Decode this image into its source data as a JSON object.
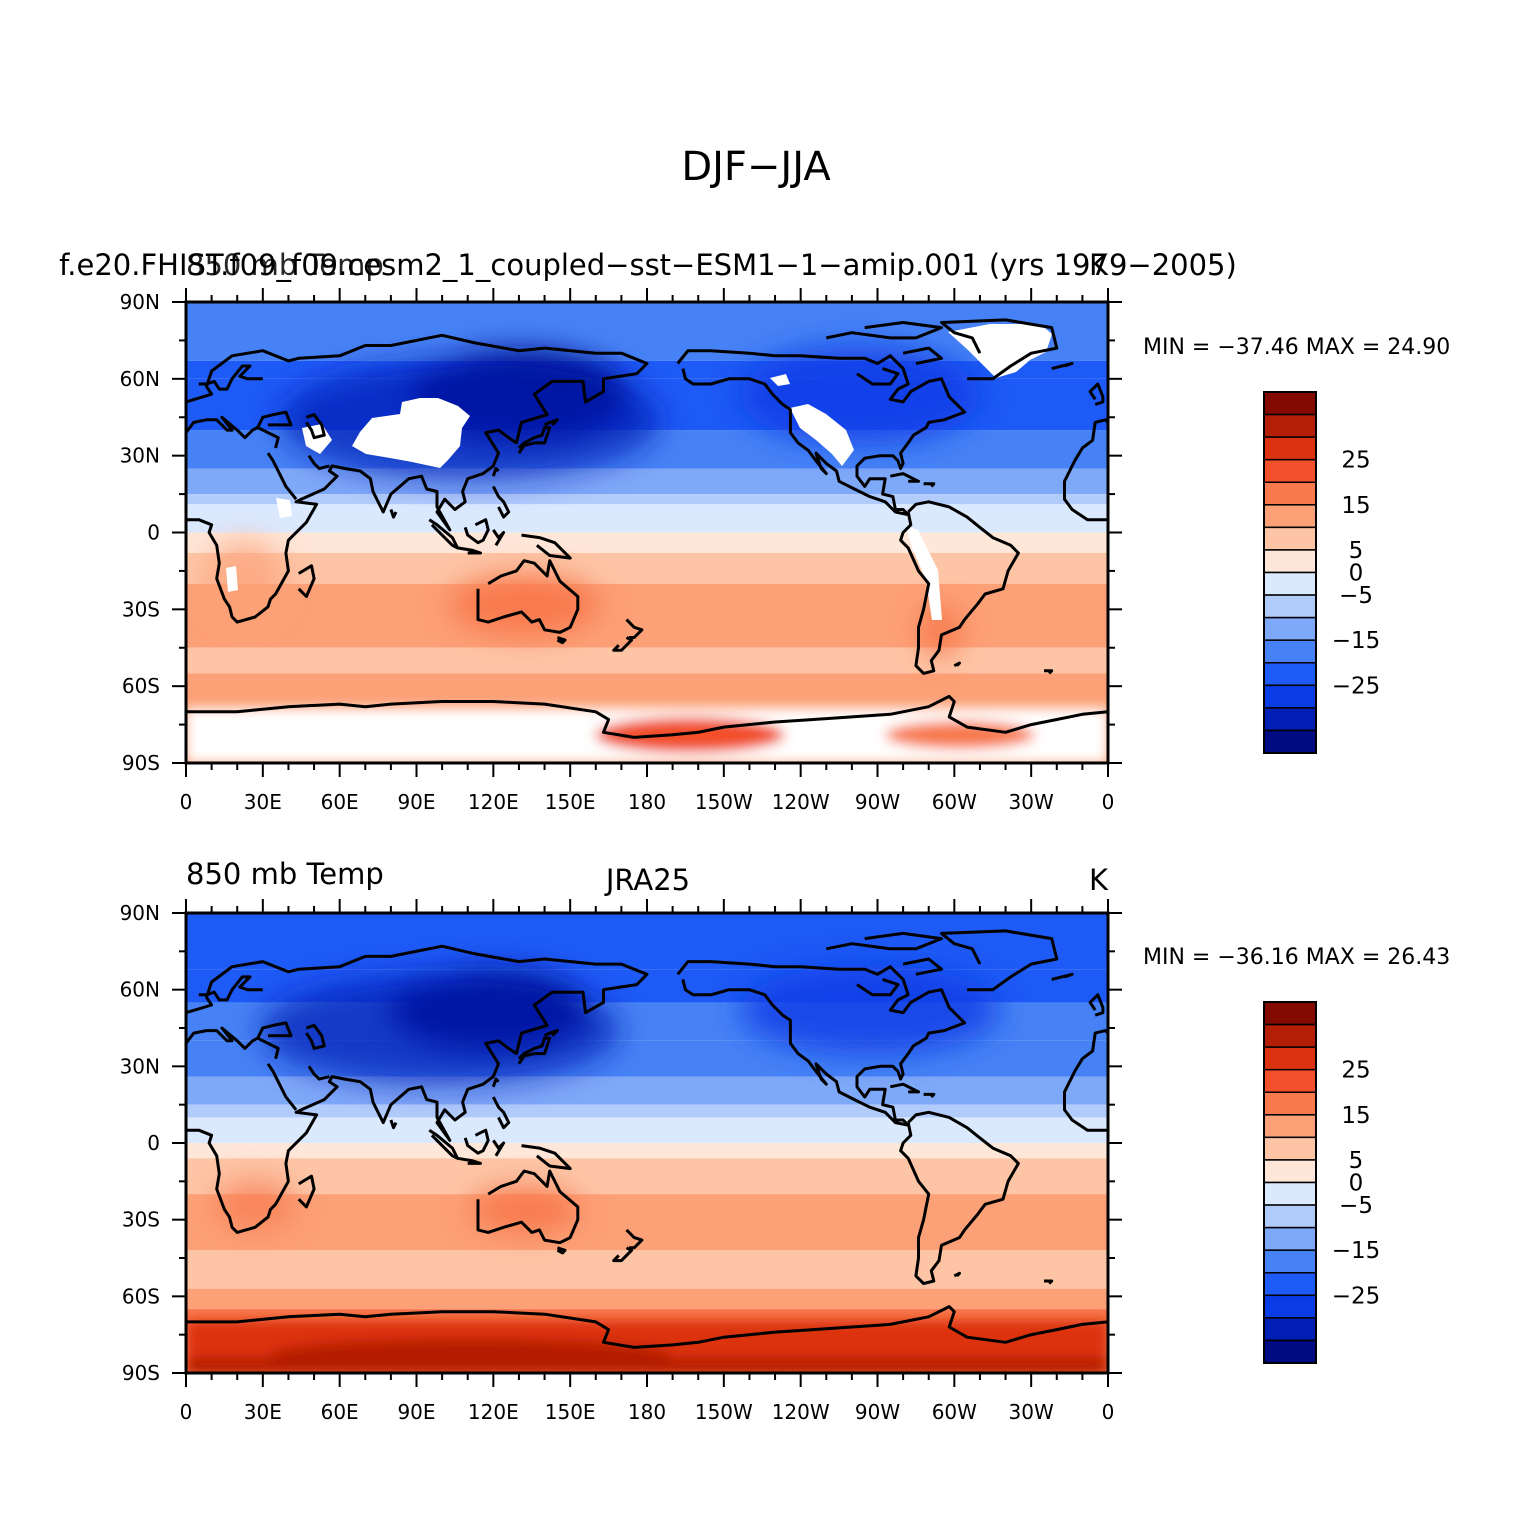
{
  "figure": {
    "title": "DJF−JJA"
  },
  "panels": [
    {
      "left_label": "",
      "center_label": "f.e20.FHIST.f09_f09.cesm2_1_coupled−sst−ESM1−1−amip.001 (yrs 1979−2005)",
      "overlap_label": "850 mb Temp",
      "right_label": "K",
      "minmax": "MIN = −37.46  MAX =   24.90",
      "stats": {
        "min": -37.46,
        "max": 24.9
      }
    },
    {
      "left_label": "850 mb Temp",
      "center_label": "JRA25",
      "overlap_label": "",
      "right_label": "K",
      "minmax": "MIN = −36.16  MAX =   26.43",
      "stats": {
        "min": -36.16,
        "max": 26.43
      }
    }
  ],
  "axes": {
    "x_ticks": [
      "0",
      "30E",
      "60E",
      "90E",
      "120E",
      "150E",
      "180",
      "150W",
      "120W",
      "90W",
      "60W",
      "30W",
      "0"
    ],
    "y_ticks": [
      "90N",
      "60N",
      "30N",
      "0",
      "30S",
      "60S",
      "90S"
    ]
  },
  "colorbar": {
    "labels": [
      "25",
      "15",
      "5",
      "0",
      "−5",
      "−15",
      "−25"
    ],
    "levels": [
      -30,
      -25,
      -20,
      -15,
      -10,
      -5,
      0,
      5,
      10,
      15,
      20,
      25,
      30
    ],
    "colors": [
      "#000a82",
      "#001eb4",
      "#0a3ce6",
      "#1e5af5",
      "#4682f5",
      "#7ea8f8",
      "#b1cbfb",
      "#dbe9fe",
      "#fee6d8",
      "#fdc5a6",
      "#fca077",
      "#f8794e",
      "#f2502a",
      "#dc3210",
      "#b41e06",
      "#820a00"
    ]
  },
  "chart_data": {
    "type": "heatmap",
    "title": "DJF−JJA",
    "variable": "850 mb Temp",
    "units": "K",
    "x_range": [
      0,
      360
    ],
    "y_range": [
      -90,
      90
    ],
    "contour_levels": [
      -30,
      -25,
      -20,
      -15,
      -10,
      -5,
      0,
      5,
      10,
      15,
      20,
      25,
      30
    ],
    "panels": [
      {
        "name": "f.e20.FHIST.f09_f09.cesm2_1_coupled−sst−ESM1−1−amip.001 (yrs 1979−2005)",
        "min": -37.46,
        "max": 24.9
      },
      {
        "name": "JRA25",
        "min": -36.16,
        "max": 26.43
      }
    ]
  }
}
